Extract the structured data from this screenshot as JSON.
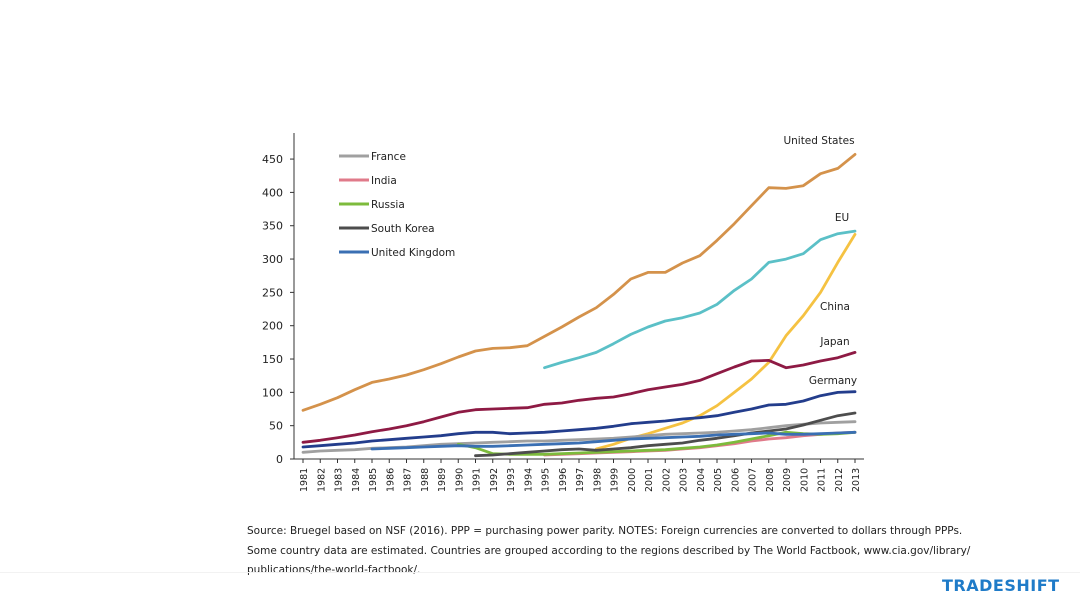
{
  "chart_data": {
    "type": "line",
    "x": [
      1981,
      1982,
      1983,
      1984,
      1985,
      1986,
      1987,
      1988,
      1989,
      1990,
      1991,
      1992,
      1993,
      1994,
      1995,
      1996,
      1997,
      1998,
      1999,
      2000,
      2001,
      2002,
      2003,
      2004,
      2005,
      2006,
      2007,
      2008,
      2009,
      2010,
      2011,
      2012,
      2013
    ],
    "xlim": [
      1981,
      2013
    ],
    "ylim": [
      0,
      480
    ],
    "yticks": [
      0,
      50,
      100,
      150,
      200,
      250,
      300,
      350,
      400,
      450
    ],
    "grid": false,
    "legend_position": "top-left",
    "series": [
      {
        "name": "United States",
        "color": "#d4924b",
        "values": [
          73,
          82,
          92,
          104,
          115,
          120,
          126,
          134,
          143,
          153,
          162,
          166,
          167,
          170,
          184,
          198,
          213,
          227,
          247,
          270,
          280,
          280,
          294,
          305,
          328,
          353,
          380,
          407,
          406,
          410,
          428,
          436,
          457
        ]
      },
      {
        "name": "EU",
        "color": "#5bc0c7",
        "values": [
          null,
          null,
          null,
          null,
          null,
          null,
          null,
          null,
          null,
          null,
          null,
          null,
          null,
          null,
          137,
          145,
          152,
          160,
          173,
          187,
          198,
          207,
          212,
          219,
          232,
          253,
          270,
          295,
          300,
          308,
          329,
          338,
          342
        ]
      },
      {
        "name": "China",
        "color": "#f5c242",
        "values": [
          null,
          null,
          null,
          null,
          null,
          null,
          null,
          null,
          null,
          null,
          null,
          null,
          null,
          null,
          null,
          null,
          null,
          15,
          22,
          31,
          38,
          46,
          54,
          65,
          80,
          100,
          120,
          145,
          185,
          215,
          250,
          295,
          337
        ]
      },
      {
        "name": "Japan",
        "color": "#8e1a44",
        "values": [
          25,
          28,
          32,
          36,
          41,
          45,
          50,
          56,
          63,
          70,
          74,
          75,
          76,
          77,
          82,
          84,
          88,
          91,
          93,
          98,
          104,
          108,
          112,
          118,
          128,
          138,
          147,
          148,
          137,
          141,
          147,
          152,
          160
        ]
      },
      {
        "name": "Germany",
        "color": "#233d8c",
        "values": [
          18,
          20,
          22,
          24,
          27,
          29,
          31,
          33,
          35,
          38,
          40,
          40,
          38,
          39,
          40,
          42,
          44,
          46,
          49,
          53,
          55,
          57,
          60,
          62,
          65,
          70,
          75,
          81,
          82,
          87,
          95,
          100,
          101
        ]
      },
      {
        "name": "France",
        "color": "#a0a0a0",
        "values": [
          10,
          12,
          13,
          14,
          16,
          17,
          18,
          20,
          22,
          23,
          24,
          25,
          26,
          27,
          27,
          28,
          29,
          30,
          31,
          33,
          35,
          37,
          38,
          39,
          40,
          42,
          44,
          47,
          50,
          52,
          54,
          55,
          56
        ]
      },
      {
        "name": "India",
        "color": "#e07a8a",
        "values": [
          null,
          null,
          null,
          null,
          null,
          null,
          null,
          null,
          null,
          null,
          null,
          null,
          null,
          null,
          6,
          7,
          8,
          9,
          10,
          11,
          12,
          13,
          15,
          17,
          20,
          23,
          27,
          30,
          32,
          35,
          37,
          39,
          40
        ]
      },
      {
        "name": "Russia",
        "color": "#7dbb3c",
        "values": [
          null,
          null,
          null,
          null,
          null,
          null,
          null,
          null,
          null,
          22,
          17,
          8,
          7,
          7,
          7,
          8,
          9,
          10,
          11,
          12,
          13,
          14,
          16,
          18,
          21,
          25,
          30,
          35,
          40,
          38,
          37,
          38,
          40
        ]
      },
      {
        "name": "South Korea",
        "color": "#4d4d4d",
        "values": [
          null,
          null,
          null,
          null,
          null,
          null,
          null,
          null,
          null,
          null,
          5,
          6,
          8,
          10,
          12,
          14,
          15,
          13,
          15,
          17,
          20,
          22,
          24,
          28,
          31,
          35,
          39,
          42,
          45,
          51,
          58,
          65,
          69
        ]
      },
      {
        "name": "United Kingdom",
        "color": "#3a6fb3",
        "values": [
          null,
          null,
          null,
          null,
          15,
          16,
          17,
          18,
          19,
          20,
          19,
          19,
          20,
          21,
          22,
          23,
          24,
          26,
          28,
          30,
          31,
          32,
          33,
          34,
          36,
          37,
          38,
          39,
          37,
          37,
          38,
          39,
          40
        ]
      }
    ],
    "legend": [
      "France",
      "India",
      "Russia",
      "South Korea",
      "United Kingdom"
    ],
    "annotations": [
      "United States",
      "EU",
      "China",
      "Japan",
      "Germany"
    ]
  },
  "footer": {
    "source_line1": "Source: Bruegel based on NSF (2016). PPP = purchasing power parity. NOTES: Foreign currencies are converted to dollars through PPPs.",
    "source_line2": "Some country data are estimated. Countries are grouped according to the regions described by The World Factbook, www.cia.gov/library/",
    "source_line3": "publications/the-world-factbook/.",
    "brand": "TRADESHIFT"
  }
}
